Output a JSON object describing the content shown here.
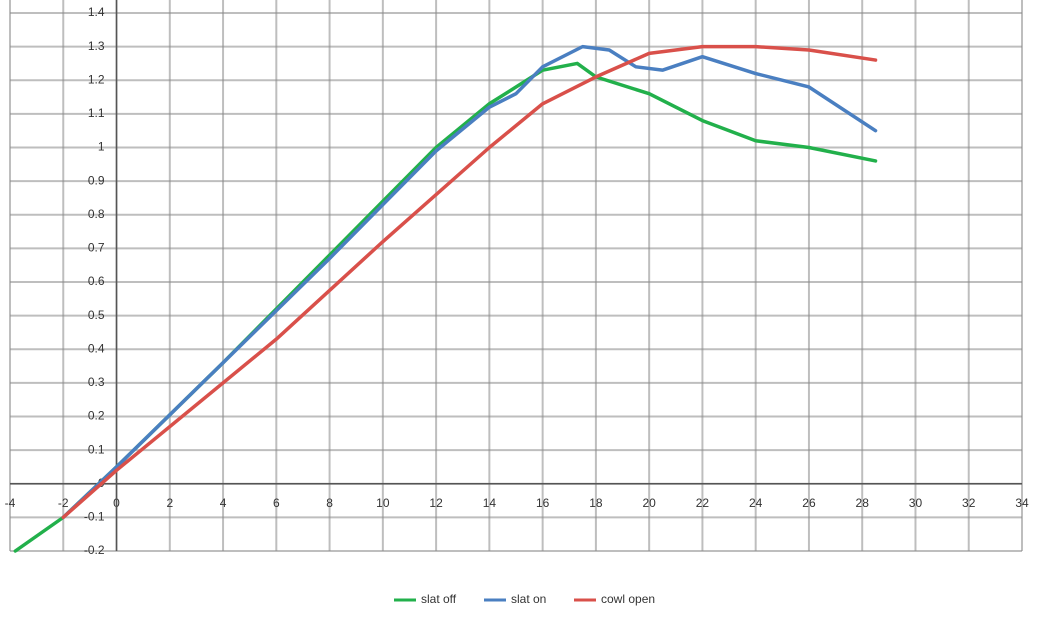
{
  "chart_data": {
    "type": "line",
    "xlim": [
      -4,
      34
    ],
    "ylim": [
      -0.2,
      1.4
    ],
    "xticks": [
      -4,
      -2,
      0,
      2,
      4,
      6,
      8,
      10,
      12,
      14,
      16,
      18,
      20,
      22,
      24,
      26,
      28,
      30,
      32,
      34
    ],
    "yticks": [
      -0.2,
      -0.1,
      0,
      0.1,
      0.2,
      0.3,
      0.4,
      0.5,
      0.6,
      0.7,
      0.8,
      0.9,
      1,
      1.1,
      1.2,
      1.3,
      1.4
    ],
    "grid": true,
    "legend": "bottom",
    "series": [
      {
        "name": "slat off",
        "color": "#22b04b",
        "x": [
          -3.8,
          -2,
          0,
          4,
          8,
          12,
          14,
          16,
          17.3,
          18,
          20,
          22,
          24,
          26,
          28.5
        ],
        "values": [
          -0.2,
          -0.1,
          0.05,
          0.36,
          0.68,
          1.0,
          1.13,
          1.23,
          1.25,
          1.21,
          1.16,
          1.08,
          1.02,
          1.0,
          0.96
        ]
      },
      {
        "name": "slat on",
        "color": "#4a7fc1",
        "x": [
          -2,
          0,
          4,
          8,
          12,
          14,
          15,
          16,
          17.5,
          18.5,
          19.5,
          20.5,
          22,
          24,
          26,
          28.5
        ],
        "values": [
          -0.1,
          0.05,
          0.36,
          0.67,
          0.99,
          1.12,
          1.16,
          1.24,
          1.3,
          1.29,
          1.24,
          1.23,
          1.27,
          1.22,
          1.18,
          1.05
        ]
      },
      {
        "name": "cowl open",
        "color": "#d9504a",
        "x": [
          -2,
          0,
          6,
          10,
          14,
          16,
          18,
          20,
          22,
          24,
          26,
          28.5
        ],
        "values": [
          -0.1,
          0.04,
          0.43,
          0.72,
          1.0,
          1.13,
          1.21,
          1.28,
          1.3,
          1.3,
          1.29,
          1.26
        ]
      }
    ]
  }
}
